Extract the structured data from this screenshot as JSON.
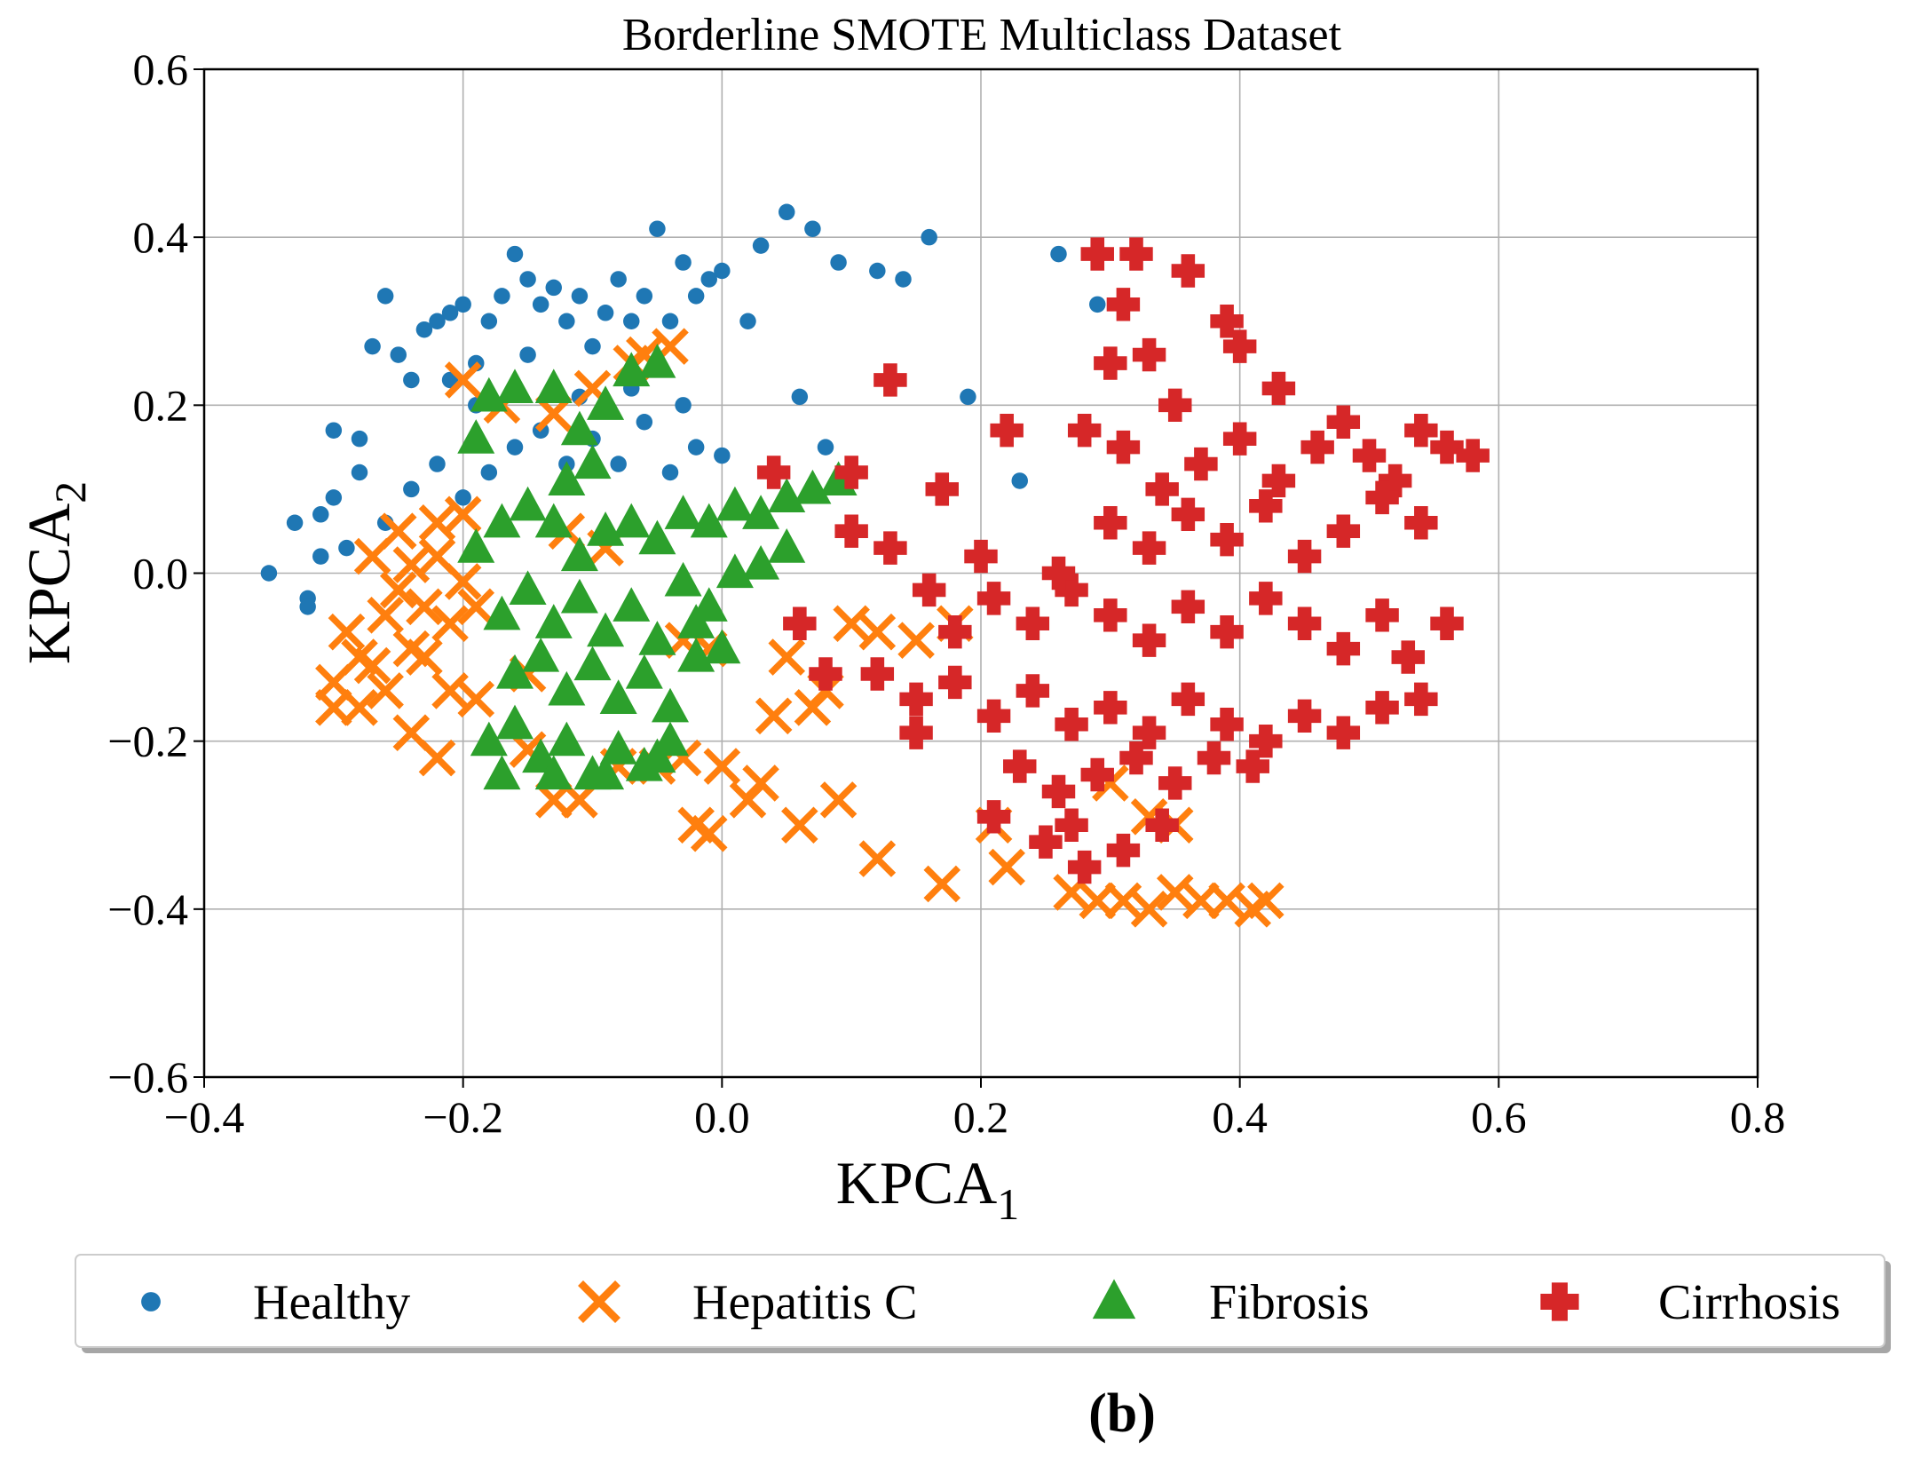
{
  "chart_data": {
    "type": "scatter",
    "title": "Borderline SMOTE Multiclass Dataset",
    "xlabel": "KPCA",
    "xlabel_sub": "1",
    "ylabel": "KPCA",
    "ylabel_sub": "2",
    "xlim": [
      -0.4,
      0.8
    ],
    "ylim": [
      -0.6,
      0.6
    ],
    "xticks": [
      -0.4,
      -0.2,
      0.0,
      0.2,
      0.4,
      0.6,
      0.8
    ],
    "yticks": [
      -0.6,
      -0.4,
      -0.2,
      0.0,
      0.2,
      0.4,
      0.6
    ],
    "xtick_labels": [
      "−0.4",
      "−0.2",
      "0.0",
      "0.2",
      "0.4",
      "0.6",
      "0.8"
    ],
    "ytick_labels": [
      "−0.6",
      "−0.4",
      "−0.2",
      "0.0",
      "0.2",
      "0.4",
      "0.6"
    ],
    "grid": true,
    "legend_position": "bottom-outside",
    "series": [
      {
        "name": "Healthy",
        "marker": "circle",
        "color": "#1f77b4",
        "points": [
          [
            -0.35,
            0.0
          ],
          [
            -0.33,
            0.06
          ],
          [
            -0.32,
            -0.03
          ],
          [
            -0.31,
            0.02
          ],
          [
            -0.3,
            0.17
          ],
          [
            -0.29,
            0.03
          ],
          [
            -0.28,
            0.16
          ],
          [
            -0.27,
            0.27
          ],
          [
            -0.26,
            0.33
          ],
          [
            -0.25,
            0.26
          ],
          [
            -0.24,
            0.23
          ],
          [
            -0.23,
            0.29
          ],
          [
            -0.22,
            0.3
          ],
          [
            -0.21,
            0.31
          ],
          [
            -0.2,
            0.32
          ],
          [
            -0.19,
            0.25
          ],
          [
            -0.18,
            0.3
          ],
          [
            -0.17,
            0.33
          ],
          [
            -0.16,
            0.38
          ],
          [
            -0.15,
            0.35
          ],
          [
            -0.14,
            0.32
          ],
          [
            -0.13,
            0.34
          ],
          [
            -0.12,
            0.3
          ],
          [
            -0.11,
            0.33
          ],
          [
            -0.1,
            0.27
          ],
          [
            -0.09,
            0.31
          ],
          [
            -0.08,
            0.35
          ],
          [
            -0.07,
            0.3
          ],
          [
            -0.06,
            0.33
          ],
          [
            -0.05,
            0.41
          ],
          [
            -0.04,
            0.3
          ],
          [
            -0.03,
            0.37
          ],
          [
            -0.02,
            0.33
          ],
          [
            -0.01,
            0.35
          ],
          [
            0.0,
            0.36
          ],
          [
            0.02,
            0.3
          ],
          [
            0.03,
            0.39
          ],
          [
            0.05,
            0.43
          ],
          [
            0.07,
            0.41
          ],
          [
            0.09,
            0.37
          ],
          [
            0.12,
            0.36
          ],
          [
            0.14,
            0.35
          ],
          [
            0.16,
            0.4
          ],
          [
            0.19,
            0.21
          ],
          [
            0.23,
            0.11
          ],
          [
            0.26,
            0.38
          ],
          [
            0.29,
            0.32
          ],
          [
            0.06,
            0.21
          ],
          [
            0.08,
            0.15
          ],
          [
            -0.3,
            0.09
          ],
          [
            -0.28,
            0.12
          ],
          [
            -0.26,
            0.06
          ],
          [
            -0.24,
            0.1
          ],
          [
            -0.22,
            0.13
          ],
          [
            -0.2,
            0.09
          ],
          [
            -0.18,
            0.12
          ],
          [
            -0.16,
            0.15
          ],
          [
            -0.14,
            0.17
          ],
          [
            -0.12,
            0.13
          ],
          [
            -0.1,
            0.16
          ],
          [
            -0.08,
            0.13
          ],
          [
            -0.06,
            0.18
          ],
          [
            -0.04,
            0.12
          ],
          [
            -0.02,
            0.15
          ],
          [
            0.0,
            0.14
          ],
          [
            -0.21,
            0.23
          ],
          [
            -0.19,
            0.2
          ],
          [
            -0.15,
            0.26
          ],
          [
            -0.11,
            0.21
          ],
          [
            -0.07,
            0.22
          ],
          [
            -0.03,
            0.2
          ],
          [
            -0.32,
            -0.04
          ],
          [
            -0.31,
            0.07
          ]
        ]
      },
      {
        "name": "Hepatitis C",
        "marker": "x",
        "color": "#ff7f0e",
        "points": [
          [
            -0.3,
            -0.13
          ],
          [
            -0.29,
            -0.07
          ],
          [
            -0.28,
            -0.16
          ],
          [
            -0.27,
            -0.11
          ],
          [
            -0.26,
            -0.05
          ],
          [
            -0.25,
            -0.02
          ],
          [
            -0.24,
            0.01
          ],
          [
            -0.23,
            -0.04
          ],
          [
            -0.22,
            0.02
          ],
          [
            -0.21,
            -0.06
          ],
          [
            -0.2,
            -0.01
          ],
          [
            -0.19,
            -0.04
          ],
          [
            -0.27,
            0.02
          ],
          [
            -0.25,
            0.05
          ],
          [
            -0.22,
            0.06
          ],
          [
            -0.2,
            0.07
          ],
          [
            -0.23,
            -0.1
          ],
          [
            -0.21,
            -0.14
          ],
          [
            -0.19,
            -0.15
          ],
          [
            -0.24,
            -0.19
          ],
          [
            -0.22,
            -0.22
          ],
          [
            -0.2,
            0.23
          ],
          [
            -0.17,
            0.2
          ],
          [
            -0.13,
            0.19
          ],
          [
            -0.1,
            0.22
          ],
          [
            -0.06,
            0.26
          ],
          [
            -0.04,
            0.27
          ],
          [
            -0.07,
            0.25
          ],
          [
            -0.15,
            -0.21
          ],
          [
            -0.13,
            -0.27
          ],
          [
            -0.11,
            -0.27
          ],
          [
            -0.08,
            -0.23
          ],
          [
            -0.05,
            -0.23
          ],
          [
            -0.03,
            -0.22
          ],
          [
            -0.02,
            -0.3
          ],
          [
            -0.01,
            -0.31
          ],
          [
            0.0,
            -0.23
          ],
          [
            0.02,
            -0.27
          ],
          [
            0.03,
            -0.25
          ],
          [
            0.04,
            -0.17
          ],
          [
            0.05,
            -0.1
          ],
          [
            0.06,
            -0.3
          ],
          [
            0.07,
            -0.16
          ],
          [
            0.08,
            -0.14
          ],
          [
            0.09,
            -0.27
          ],
          [
            0.1,
            -0.06
          ],
          [
            0.12,
            -0.07
          ],
          [
            0.12,
            -0.34
          ],
          [
            0.15,
            -0.08
          ],
          [
            0.17,
            -0.37
          ],
          [
            0.18,
            -0.06
          ],
          [
            0.21,
            -0.3
          ],
          [
            0.22,
            -0.35
          ],
          [
            0.27,
            -0.38
          ],
          [
            0.29,
            -0.39
          ],
          [
            0.31,
            -0.39
          ],
          [
            0.33,
            -0.4
          ],
          [
            0.35,
            -0.38
          ],
          [
            0.37,
            -0.39
          ],
          [
            0.39,
            -0.39
          ],
          [
            0.41,
            -0.4
          ],
          [
            0.42,
            -0.39
          ],
          [
            0.3,
            -0.25
          ],
          [
            0.33,
            -0.29
          ],
          [
            0.35,
            -0.3
          ],
          [
            -0.3,
            -0.16
          ],
          [
            -0.28,
            -0.1
          ],
          [
            -0.26,
            -0.14
          ],
          [
            -0.24,
            -0.09
          ],
          [
            -0.15,
            -0.12
          ],
          [
            -0.12,
            0.05
          ],
          [
            -0.09,
            0.03
          ],
          [
            -0.03,
            -0.08
          ],
          [
            -0.01,
            -0.09
          ]
        ]
      },
      {
        "name": "Fibrosis",
        "marker": "triangle",
        "color": "#2ca02c",
        "points": [
          [
            -0.19,
            0.16
          ],
          [
            -0.18,
            0.21
          ],
          [
            -0.16,
            0.22
          ],
          [
            -0.13,
            0.22
          ],
          [
            -0.11,
            0.17
          ],
          [
            -0.09,
            0.2
          ],
          [
            -0.07,
            0.24
          ],
          [
            -0.05,
            0.25
          ],
          [
            -0.12,
            0.11
          ],
          [
            -0.1,
            0.13
          ],
          [
            -0.19,
            0.03
          ],
          [
            -0.17,
            0.06
          ],
          [
            -0.15,
            0.08
          ],
          [
            -0.13,
            0.06
          ],
          [
            -0.11,
            0.02
          ],
          [
            -0.09,
            0.05
          ],
          [
            -0.07,
            0.06
          ],
          [
            -0.05,
            0.04
          ],
          [
            -0.03,
            0.07
          ],
          [
            -0.01,
            0.06
          ],
          [
            0.01,
            0.08
          ],
          [
            0.03,
            0.07
          ],
          [
            0.05,
            0.09
          ],
          [
            0.07,
            0.1
          ],
          [
            0.09,
            0.11
          ],
          [
            -0.17,
            -0.05
          ],
          [
            -0.15,
            -0.02
          ],
          [
            -0.13,
            -0.06
          ],
          [
            -0.11,
            -0.03
          ],
          [
            -0.09,
            -0.07
          ],
          [
            -0.07,
            -0.04
          ],
          [
            -0.05,
            -0.08
          ],
          [
            -0.03,
            -0.01
          ],
          [
            -0.01,
            -0.04
          ],
          [
            0.01,
            0.0
          ],
          [
            0.03,
            0.01
          ],
          [
            0.05,
            0.03
          ],
          [
            -0.16,
            -0.12
          ],
          [
            -0.14,
            -0.1
          ],
          [
            -0.12,
            -0.14
          ],
          [
            -0.1,
            -0.11
          ],
          [
            -0.08,
            -0.15
          ],
          [
            -0.06,
            -0.12
          ],
          [
            -0.04,
            -0.16
          ],
          [
            -0.02,
            -0.1
          ],
          [
            -0.18,
            -0.2
          ],
          [
            -0.16,
            -0.18
          ],
          [
            -0.14,
            -0.22
          ],
          [
            -0.12,
            -0.2
          ],
          [
            -0.1,
            -0.24
          ],
          [
            -0.08,
            -0.21
          ],
          [
            -0.06,
            -0.23
          ],
          [
            -0.04,
            -0.2
          ],
          [
            -0.17,
            -0.24
          ],
          [
            -0.13,
            -0.24
          ],
          [
            -0.09,
            -0.24
          ],
          [
            -0.05,
            -0.22
          ],
          [
            0.0,
            -0.09
          ],
          [
            -0.02,
            -0.06
          ]
        ]
      },
      {
        "name": "Cirrhosis",
        "marker": "plus",
        "color": "#d62728",
        "points": [
          [
            0.04,
            0.12
          ],
          [
            0.1,
            0.12
          ],
          [
            0.13,
            0.23
          ],
          [
            0.17,
            0.1
          ],
          [
            0.22,
            0.17
          ],
          [
            0.29,
            0.38
          ],
          [
            0.32,
            0.38
          ],
          [
            0.31,
            0.32
          ],
          [
            0.36,
            0.36
          ],
          [
            0.39,
            0.3
          ],
          [
            0.4,
            0.27
          ],
          [
            0.43,
            0.22
          ],
          [
            0.3,
            0.25
          ],
          [
            0.33,
            0.26
          ],
          [
            0.35,
            0.2
          ],
          [
            0.28,
            0.17
          ],
          [
            0.31,
            0.15
          ],
          [
            0.34,
            0.1
          ],
          [
            0.37,
            0.13
          ],
          [
            0.4,
            0.16
          ],
          [
            0.43,
            0.11
          ],
          [
            0.46,
            0.15
          ],
          [
            0.48,
            0.18
          ],
          [
            0.5,
            0.14
          ],
          [
            0.52,
            0.11
          ],
          [
            0.54,
            0.17
          ],
          [
            0.56,
            0.15
          ],
          [
            0.58,
            0.14
          ],
          [
            0.3,
            0.06
          ],
          [
            0.33,
            0.03
          ],
          [
            0.36,
            0.07
          ],
          [
            0.39,
            0.04
          ],
          [
            0.42,
            0.08
          ],
          [
            0.45,
            0.02
          ],
          [
            0.48,
            0.05
          ],
          [
            0.51,
            0.09
          ],
          [
            0.54,
            0.06
          ],
          [
            0.1,
            0.05
          ],
          [
            0.13,
            0.03
          ],
          [
            0.16,
            -0.02
          ],
          [
            0.18,
            -0.07
          ],
          [
            0.21,
            -0.03
          ],
          [
            0.24,
            -0.06
          ],
          [
            0.27,
            -0.02
          ],
          [
            0.3,
            -0.05
          ],
          [
            0.33,
            -0.08
          ],
          [
            0.36,
            -0.04
          ],
          [
            0.39,
            -0.07
          ],
          [
            0.42,
            -0.03
          ],
          [
            0.45,
            -0.06
          ],
          [
            0.48,
            -0.09
          ],
          [
            0.51,
            -0.05
          ],
          [
            0.53,
            -0.1
          ],
          [
            0.56,
            -0.06
          ],
          [
            0.12,
            -0.12
          ],
          [
            0.15,
            -0.15
          ],
          [
            0.18,
            -0.13
          ],
          [
            0.21,
            -0.17
          ],
          [
            0.24,
            -0.14
          ],
          [
            0.27,
            -0.18
          ],
          [
            0.3,
            -0.16
          ],
          [
            0.33,
            -0.19
          ],
          [
            0.36,
            -0.15
          ],
          [
            0.39,
            -0.18
          ],
          [
            0.42,
            -0.2
          ],
          [
            0.45,
            -0.17
          ],
          [
            0.48,
            -0.19
          ],
          [
            0.51,
            -0.16
          ],
          [
            0.54,
            -0.15
          ],
          [
            0.23,
            -0.23
          ],
          [
            0.26,
            -0.26
          ],
          [
            0.29,
            -0.24
          ],
          [
            0.32,
            -0.22
          ],
          [
            0.35,
            -0.25
          ],
          [
            0.38,
            -0.22
          ],
          [
            0.41,
            -0.23
          ],
          [
            0.25,
            -0.32
          ],
          [
            0.28,
            -0.35
          ],
          [
            0.31,
            -0.33
          ],
          [
            0.34,
            -0.3
          ],
          [
            0.21,
            -0.29
          ],
          [
            0.27,
            -0.3
          ],
          [
            0.06,
            -0.06
          ],
          [
            0.08,
            -0.12
          ],
          [
            0.15,
            -0.19
          ],
          [
            0.26,
            0.0
          ],
          [
            0.2,
            0.02
          ]
        ]
      }
    ],
    "legend": [
      "Healthy",
      "Hepatitis C",
      "Fibrosis",
      "Cirrhosis"
    ]
  },
  "panel_label": "(b)"
}
